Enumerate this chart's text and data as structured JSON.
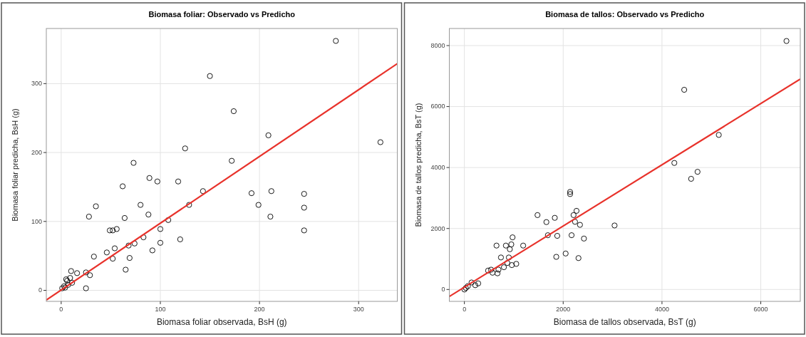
{
  "chart_data": [
    {
      "type": "scatter",
      "title": "Biomasa foliar: Observado vs Predicho",
      "xlabel": "Biomasa foliar observada, BsH (g)",
      "ylabel": "Biomasa foliar predicha, BsH (g)",
      "xlim": [
        -15,
        339
      ],
      "ylim": [
        -16,
        380
      ],
      "xticks": [
        0,
        100,
        200,
        300
      ],
      "yticks": [
        0,
        100,
        200,
        300
      ],
      "grid": true,
      "marker": "circle",
      "series": [
        {
          "color": "#000000",
          "x": [
            277,
            150,
            174,
            209,
            322,
            172,
            143,
            192,
            212,
            199,
            211,
            245,
            245,
            245,
            125,
            73,
            89,
            97,
            118,
            62,
            80,
            129,
            35,
            28,
            88,
            64,
            108,
            100,
            52,
            49,
            56,
            83,
            100,
            74,
            120,
            46,
            54,
            68,
            92,
            33,
            52,
            69,
            65,
            10,
            16,
            25,
            29,
            25,
            5,
            6,
            9,
            3,
            1,
            4,
            7,
            11
          ],
          "values": [
            362,
            311,
            260,
            225,
            215,
            188,
            144,
            141,
            144,
            124,
            107,
            140,
            120,
            87,
            206,
            185,
            163,
            158,
            158,
            151,
            124,
            124,
            122,
            107,
            110,
            105,
            102,
            89,
            87,
            87,
            89,
            77,
            69,
            68,
            74,
            55,
            61,
            65,
            58,
            49,
            46,
            47,
            30,
            28,
            25,
            26,
            22,
            3,
            16,
            14,
            18,
            6,
            3,
            4,
            8,
            11
          ]
        },
        {
          "type": "line",
          "marker": "none",
          "color": "#e8322b",
          "x": [
            -15,
            339
          ],
          "values": [
            -14,
            329
          ]
        }
      ]
    },
    {
      "type": "scatter",
      "title": "Biomasa de tallos: Observado vs Predicho",
      "xlabel": "Biomasa de tallos observada, BsT (g)",
      "ylabel": "Biomasa de tallos predicha, BsT (g)",
      "xlim": [
        -305,
        6800
      ],
      "ylim": [
        -390,
        8560
      ],
      "xticks": [
        0,
        2000,
        4000,
        6000
      ],
      "yticks": [
        0,
        2000,
        4000,
        6000,
        8000
      ],
      "grid": true,
      "marker": "circle",
      "series": [
        {
          "color": "#000000",
          "x": [
            6520,
            4450,
            5150,
            4250,
            4720,
            4590,
            3040,
            2140,
            2140,
            2270,
            2210,
            2340,
            2240,
            1480,
            1660,
            1830,
            1690,
            1880,
            2170,
            2420,
            1860,
            2050,
            2310,
            1190,
            975,
            950,
            920,
            650,
            840,
            740,
            900,
            870,
            1050,
            960,
            690,
            540,
            570,
            670,
            480,
            800,
            70,
            145,
            30,
            220,
            280,
            0
          ],
          "values": [
            8150,
            6550,
            5070,
            4150,
            3860,
            3630,
            2100,
            3130,
            3200,
            2580,
            2440,
            2120,
            2220,
            2440,
            2210,
            2350,
            1780,
            1760,
            1780,
            1670,
            1070,
            1180,
            1030,
            1440,
            1710,
            1480,
            1320,
            1440,
            1440,
            1050,
            1050,
            870,
            840,
            800,
            650,
            650,
            550,
            530,
            620,
            730,
            110,
            230,
            50,
            140,
            200,
            0
          ]
        },
        {
          "type": "line",
          "marker": "none",
          "color": "#e8322b",
          "x": [
            -305,
            6800
          ],
          "values": [
            -230,
            6900
          ]
        }
      ]
    }
  ]
}
